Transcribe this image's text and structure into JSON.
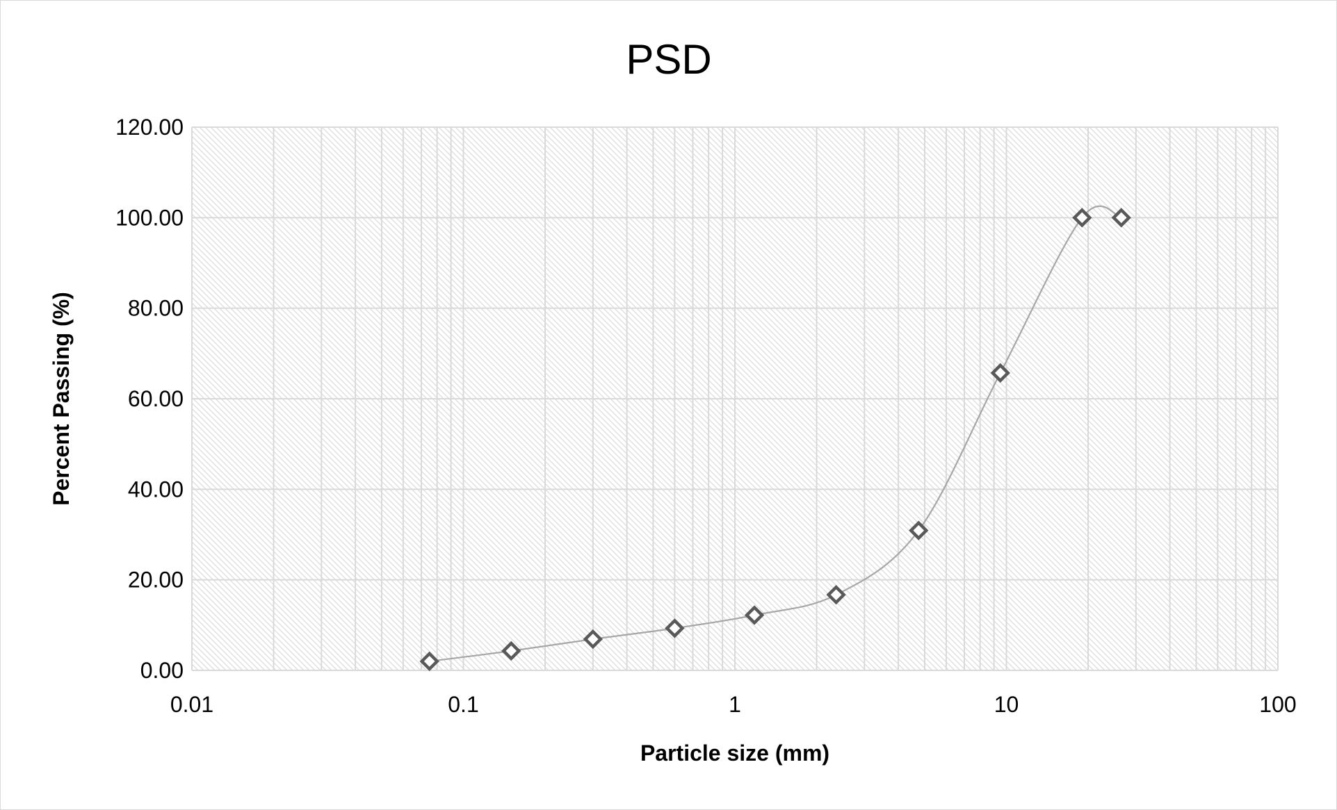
{
  "chart_data": {
    "type": "scatter",
    "title": "PSD",
    "xlabel": "Particle size (mm)",
    "ylabel": "Percent Passing (%)",
    "x_scale": "log",
    "xlim": [
      0.01,
      100
    ],
    "ylim": [
      0,
      120
    ],
    "x_ticks": [
      "0.01",
      "0.1",
      "1",
      "10",
      "100"
    ],
    "y_ticks": [
      "0.00",
      "20.00",
      "40.00",
      "60.00",
      "80.00",
      "100.00",
      "120.00"
    ],
    "grid": true,
    "legend": "none",
    "line_style": "smoothed",
    "marker": "diamond",
    "colors": {
      "line": "#a6a6a6",
      "marker": "#595959",
      "grid": "#d9d9d9",
      "plot_hatch": "#d9d9d9"
    },
    "series": [
      {
        "x": [
          0.075,
          0.15,
          0.3,
          0.6,
          1.18,
          2.36,
          4.75,
          9.5,
          19,
          26.5
        ],
        "y": [
          2.0,
          4.3,
          6.9,
          9.3,
          12.2,
          16.7,
          30.9,
          65.7,
          100.0,
          100.0
        ]
      }
    ]
  }
}
